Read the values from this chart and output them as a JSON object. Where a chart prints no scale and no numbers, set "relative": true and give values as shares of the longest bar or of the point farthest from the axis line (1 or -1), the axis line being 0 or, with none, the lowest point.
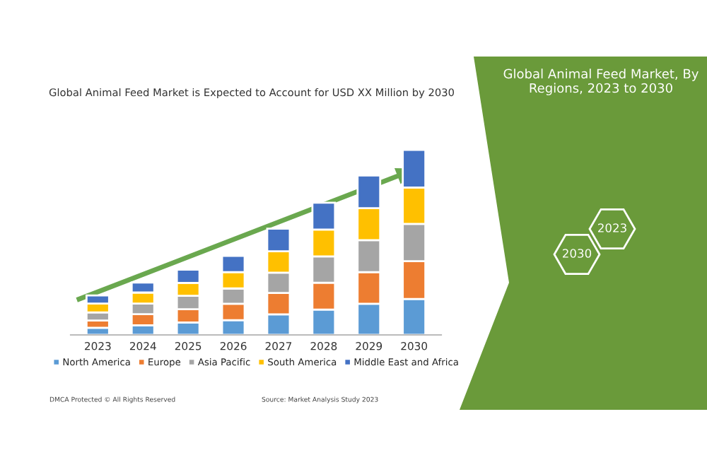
{
  "chart_data": {
    "type": "bar",
    "title": "Global Animal Feed Market is Expected to Account for USD XX Million by 2030",
    "categories": [
      "2023",
      "2024",
      "2025",
      "2026",
      "2027",
      "2028",
      "2029",
      "2030"
    ],
    "stacked": true,
    "relative": true,
    "legend": "bottom",
    "grid": false,
    "series": [
      {
        "name": "North America",
        "color": "#5b9bd5",
        "values": [
          0.039,
          0.052,
          0.067,
          0.08,
          0.111,
          0.137,
          0.168,
          0.194
        ]
      },
      {
        "name": "Europe",
        "color": "#ed7d31",
        "values": [
          0.039,
          0.06,
          0.072,
          0.088,
          0.116,
          0.145,
          0.171,
          0.204
        ]
      },
      {
        "name": "Asia Pacific",
        "color": "#a5a5a5",
        "values": [
          0.044,
          0.057,
          0.072,
          0.083,
          0.109,
          0.142,
          0.173,
          0.202
        ]
      },
      {
        "name": "South America",
        "color": "#ffc000",
        "values": [
          0.047,
          0.06,
          0.07,
          0.088,
          0.116,
          0.145,
          0.173,
          0.196
        ]
      },
      {
        "name": "Middle East and Africa",
        "color": "#4472c4",
        "values": [
          0.044,
          0.054,
          0.072,
          0.088,
          0.122,
          0.145,
          0.176,
          0.204
        ]
      }
    ],
    "annotations": [
      "Global Animal Feed Market, By Regions, 2023 to 2030",
      "2023",
      "2030",
      "DMCA Protected © All Rights Reserved",
      "Source: Market Analysis Study 2023"
    ]
  }
}
